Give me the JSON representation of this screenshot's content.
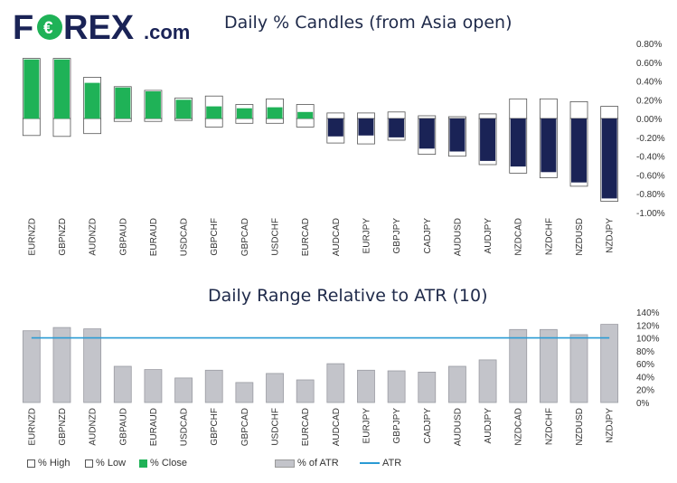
{
  "logo": {
    "left_text": "F",
    "right_text": "REX",
    "suffix": ".com",
    "coin_glyph": "€"
  },
  "colors": {
    "navy": "#1a2356",
    "green": "#1fb257",
    "atr_bar": "#c3c4ca",
    "atr_line": "#2a9bd4",
    "text": "#333333"
  },
  "chart_data": [
    {
      "type": "bar",
      "title": "Daily % Candles (from Asia open)",
      "categories": [
        "EURNZD",
        "GBPNZD",
        "AUDNZD",
        "GBPAUD",
        "EURAUD",
        "USDCAD",
        "GBPCHF",
        "GBPCAD",
        "USDCHF",
        "EURCAD",
        "AUDCAD",
        "EURJPY",
        "GBPJPY",
        "CADJPY",
        "AUDUSD",
        "AUDJPY",
        "NZDCAD",
        "NZDCHF",
        "NZDUSD",
        "NZDJPY"
      ],
      "series": [
        {
          "name": "% High",
          "values": [
            0.64,
            0.64,
            0.44,
            0.34,
            0.3,
            0.22,
            0.24,
            0.15,
            0.21,
            0.15,
            0.06,
            0.06,
            0.07,
            0.03,
            0.02,
            0.05,
            0.21,
            0.21,
            0.18,
            0.13
          ]
        },
        {
          "name": "% Low",
          "values": [
            -0.18,
            -0.19,
            -0.16,
            -0.03,
            -0.03,
            -0.02,
            -0.09,
            -0.05,
            -0.05,
            -0.09,
            -0.26,
            -0.27,
            -0.23,
            -0.38,
            -0.4,
            -0.49,
            -0.58,
            -0.63,
            -0.72,
            -0.88
          ]
        },
        {
          "name": "% Close",
          "values": [
            0.63,
            0.63,
            0.38,
            0.33,
            0.29,
            0.2,
            0.13,
            0.11,
            0.12,
            0.07,
            -0.19,
            -0.18,
            -0.2,
            -0.32,
            -0.35,
            -0.45,
            -0.51,
            -0.57,
            -0.68,
            -0.85
          ]
        }
      ],
      "yticks": [
        "0.80%",
        "0.60%",
        "0.40%",
        "0.20%",
        "0.00%",
        "-0.20%",
        "-0.40%",
        "-0.60%",
        "-0.80%",
        "-1.00%"
      ],
      "ylim": [
        -1.0,
        0.8
      ]
    },
    {
      "type": "bar",
      "title": "Daily Range Relative to ATR (10)",
      "categories": [
        "EURNZD",
        "GBPNZD",
        "AUDNZD",
        "GBPAUD",
        "EURAUD",
        "USDCAD",
        "GBPCHF",
        "GBPCAD",
        "USDCHF",
        "EURCAD",
        "AUDCAD",
        "EURJPY",
        "GBPJPY",
        "CADJPY",
        "AUDUSD",
        "AUDJPY",
        "NZDCAD",
        "NZDCHF",
        "NZDUSD",
        "NZDJPY"
      ],
      "series": [
        {
          "name": "% of ATR",
          "values": [
            111,
            116,
            114,
            56,
            51,
            38,
            50,
            31,
            45,
            35,
            60,
            50,
            49,
            47,
            56,
            66,
            113,
            113,
            105,
            121
          ]
        },
        {
          "name": "ATR",
          "values": [
            100,
            100,
            100,
            100,
            100,
            100,
            100,
            100,
            100,
            100,
            100,
            100,
            100,
            100,
            100,
            100,
            100,
            100,
            100,
            100
          ]
        }
      ],
      "yticks": [
        "140%",
        "120%",
        "100%",
        "80%",
        "60%",
        "40%",
        "20%",
        "0%"
      ],
      "ylim": [
        0,
        140
      ]
    }
  ],
  "legend": [
    {
      "key": "high",
      "label": "% High"
    },
    {
      "key": "low",
      "label": "% Low"
    },
    {
      "key": "close",
      "label": "% Close"
    },
    {
      "key": "atrbar",
      "label": "% of ATR"
    },
    {
      "key": "atrline",
      "label": "ATR"
    }
  ]
}
